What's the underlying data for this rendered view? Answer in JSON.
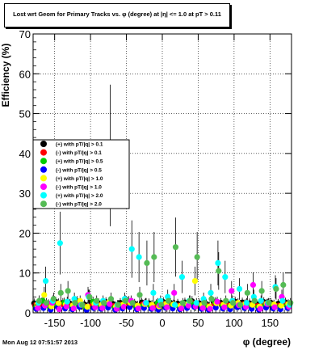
{
  "chart_data": {
    "type": "scatter",
    "title": "Lost wrt Geom for Primary Tracks vs. φ (degree) at |η| <= 1.0 at pT > 0.11",
    "xlabel": "φ (degree)",
    "ylabel": "Efficiency (%)",
    "xlim": [
      -180,
      180
    ],
    "ylim": [
      0,
      70
    ],
    "xticks": [
      "-150",
      "-100",
      "-50",
      "0",
      "50",
      "100",
      "150"
    ],
    "xtick_values": [
      -150,
      -100,
      -50,
      0,
      50,
      100,
      150
    ],
    "yticks": [
      "0",
      "10",
      "20",
      "30",
      "40",
      "50",
      "60",
      "70"
    ],
    "ytick_values": [
      0,
      10,
      20,
      30,
      40,
      50,
      60,
      70
    ],
    "grid": true,
    "legend_position": "middle-left",
    "series": [
      {
        "name": "(+) with pT/|q| > 0.1",
        "color": "#000000",
        "x": [
          -175,
          -165,
          -155,
          -145,
          -135,
          -125,
          -115,
          -105,
          -95,
          -85,
          -75,
          -65,
          -55,
          -45,
          -35,
          -25,
          -15,
          -5,
          5,
          15,
          25,
          35,
          45,
          55,
          65,
          75,
          85,
          95,
          105,
          115,
          125,
          135,
          145,
          155,
          165,
          175
        ],
        "y": [
          2.4,
          2.6,
          2.2,
          2.8,
          2.5,
          2.3,
          2.9,
          2.1,
          2.6,
          2.4,
          2.7,
          2.2,
          2.5,
          2.8,
          2.3,
          2.6,
          2.4,
          2.2,
          2.7,
          2.5,
          2.3,
          2.6,
          2.9,
          2.4,
          2.2,
          2.7,
          2.5,
          2.3,
          2.8,
          2.6,
          2.4,
          2.2,
          2.7,
          2.5,
          2.3,
          2.6
        ]
      },
      {
        "name": "(-) with pT/|q| > 0.1",
        "color": "#ff0000",
        "x": [
          -175,
          -165,
          -155,
          -145,
          -135,
          -125,
          -115,
          -105,
          -95,
          -85,
          -75,
          -65,
          -55,
          -45,
          -35,
          -25,
          -15,
          -5,
          5,
          15,
          25,
          35,
          45,
          55,
          65,
          75,
          85,
          95,
          105,
          115,
          125,
          135,
          145,
          155,
          165,
          175
        ],
        "y": [
          1.9,
          2.1,
          1.7,
          2.3,
          2.0,
          1.8,
          2.4,
          1.6,
          2.1,
          1.9,
          2.2,
          1.7,
          2.0,
          2.3,
          1.8,
          2.1,
          1.9,
          1.7,
          2.2,
          2.0,
          1.8,
          2.1,
          2.4,
          1.9,
          1.7,
          2.2,
          2.0,
          1.8,
          2.3,
          2.1,
          1.9,
          1.7,
          2.2,
          2.0,
          1.8,
          2.1
        ]
      },
      {
        "name": "(+) with pT/|q| > 0.5",
        "color": "#00cc00",
        "x": [
          -175,
          -165,
          -155,
          -145,
          -135,
          -125,
          -115,
          -105,
          -95,
          -85,
          -75,
          -65,
          -55,
          -45,
          -35,
          -25,
          -15,
          -5,
          5,
          15,
          25,
          35,
          45,
          55,
          65,
          75,
          85,
          95,
          105,
          115,
          125,
          135,
          145,
          155,
          165,
          175
        ],
        "y": [
          1.4,
          3.0,
          1.2,
          1.8,
          2.6,
          1.5,
          1.9,
          1.1,
          2.8,
          1.6,
          2.0,
          1.3,
          1.7,
          2.9,
          1.4,
          1.8,
          1.6,
          2.5,
          1.9,
          1.7,
          1.5,
          1.8,
          2.1,
          1.6,
          1.4,
          2.7,
          1.7,
          1.5,
          2.0,
          1.8,
          1.6,
          1.4,
          1.9,
          1.7,
          1.5,
          1.8
        ]
      },
      {
        "name": "(-) with pT/|q| > 0.5",
        "color": "#0000ff",
        "x": [
          -175,
          -165,
          -155,
          -145,
          -135,
          -125,
          -115,
          -105,
          -95,
          -85,
          -75,
          -65,
          -55,
          -45,
          -35,
          -25,
          -15,
          -5,
          5,
          15,
          25,
          35,
          45,
          55,
          65,
          75,
          85,
          95,
          105,
          115,
          125,
          135,
          145,
          155,
          165,
          175
        ],
        "y": [
          1.0,
          1.2,
          0.8,
          1.4,
          1.1,
          0.9,
          1.5,
          0.7,
          1.2,
          1.0,
          1.3,
          0.8,
          1.1,
          1.4,
          0.9,
          1.2,
          1.0,
          0.8,
          1.3,
          1.1,
          0.9,
          1.2,
          1.5,
          1.0,
          0.8,
          1.3,
          1.1,
          0.9,
          1.4,
          1.2,
          1.0,
          0.8,
          1.3,
          1.1,
          0.9,
          1.2
        ]
      },
      {
        "name": "(+) with pT/|q| > 1.0",
        "color": "#ffff00",
        "x": [
          -175,
          -165,
          -155,
          -145,
          -135,
          -125,
          -115,
          -105,
          -95,
          -85,
          -75,
          -65,
          -55,
          -45,
          -35,
          -25,
          -15,
          -5,
          5,
          15,
          25,
          35,
          45,
          55,
          65,
          75,
          85,
          95,
          105,
          115,
          125,
          135,
          145,
          155,
          165,
          175
        ],
        "y": [
          2.0,
          4.5,
          1.6,
          2.4,
          2.1,
          1.9,
          3.0,
          1.5,
          2.2,
          2.0,
          2.6,
          1.6,
          2.1,
          2.5,
          1.8,
          2.2,
          2.0,
          1.6,
          2.3,
          2.1,
          1.8,
          2.2,
          8.0,
          2.0,
          1.6,
          2.4,
          2.1,
          1.8,
          2.5,
          2.2,
          2.0,
          1.6,
          2.3,
          2.1,
          1.8,
          2.2
        ]
      },
      {
        "name": "(-) with pT/|q| > 1.0",
        "color": "#ff00ff",
        "x": [
          -175,
          -165,
          -155,
          -145,
          -135,
          -125,
          -115,
          -105,
          -95,
          -85,
          -75,
          -65,
          -55,
          -45,
          -35,
          -25,
          -15,
          -5,
          5,
          15,
          25,
          35,
          45,
          55,
          65,
          75,
          85,
          95,
          105,
          115,
          125,
          135,
          145,
          155,
          165,
          175
        ],
        "y": [
          1.2,
          1.8,
          2.5,
          0.9,
          1.6,
          1.1,
          2.0,
          4.5,
          1.4,
          1.2,
          2.2,
          1.0,
          1.5,
          3.0,
          1.1,
          2.5,
          1.2,
          1.9,
          1.4,
          5.0,
          1.1,
          1.8,
          1.6,
          1.2,
          1.0,
          2.8,
          1.4,
          5.5,
          1.9,
          1.5,
          7.0,
          1.0,
          2.2,
          1.4,
          4.0,
          1.5
        ]
      },
      {
        "name": "(+) with pT/|q| > 2.0",
        "color": "#00ffff",
        "x": [
          -175,
          -165,
          -155,
          -145,
          -135,
          -125,
          -115,
          -105,
          -95,
          -85,
          -75,
          -65,
          -55,
          -45,
          -35,
          -25,
          -15,
          -5,
          5,
          15,
          25,
          35,
          45,
          55,
          65,
          75,
          85,
          95,
          105,
          115,
          125,
          135,
          145,
          155,
          165,
          175
        ],
        "y": [
          2.5,
          8.0,
          3.0,
          17.5,
          2.8,
          3.5,
          2.0,
          4.0,
          2.5,
          3.0,
          39.5,
          2.0,
          3.5,
          16.0,
          14.0,
          2.5,
          5.0,
          3.0,
          4.0,
          2.0,
          9.0,
          3.0,
          2.5,
          3.5,
          5.0,
          12.5,
          9.0,
          3.0,
          6.0,
          2.5,
          4.0,
          3.0,
          2.5,
          6.5,
          3.0,
          2.0
        ]
      },
      {
        "name": "(-) with pT/|q| > 2.0",
        "color": "#55bb55",
        "x": [
          -175,
          -165,
          -155,
          -145,
          -135,
          -125,
          -115,
          -105,
          -95,
          -85,
          -75,
          -65,
          -55,
          -45,
          -35,
          -25,
          -15,
          -5,
          5,
          15,
          25,
          35,
          45,
          55,
          65,
          75,
          85,
          95,
          105,
          115,
          125,
          135,
          145,
          155,
          165,
          175
        ],
        "y": [
          3.0,
          2.5,
          3.5,
          5.0,
          5.5,
          2.5,
          2.0,
          4.0,
          3.0,
          2.5,
          3.5,
          2.0,
          3.0,
          2.5,
          4.5,
          12.5,
          14.0,
          2.0,
          3.0,
          16.5,
          2.5,
          3.0,
          14.0,
          2.5,
          3.5,
          10.5,
          3.0,
          2.5,
          2.0,
          5.0,
          3.0,
          5.5,
          2.5,
          6.0,
          7.0,
          2.5
        ]
      }
    ]
  },
  "footer_text": "Mon Aug 12 07:51:57 2013"
}
